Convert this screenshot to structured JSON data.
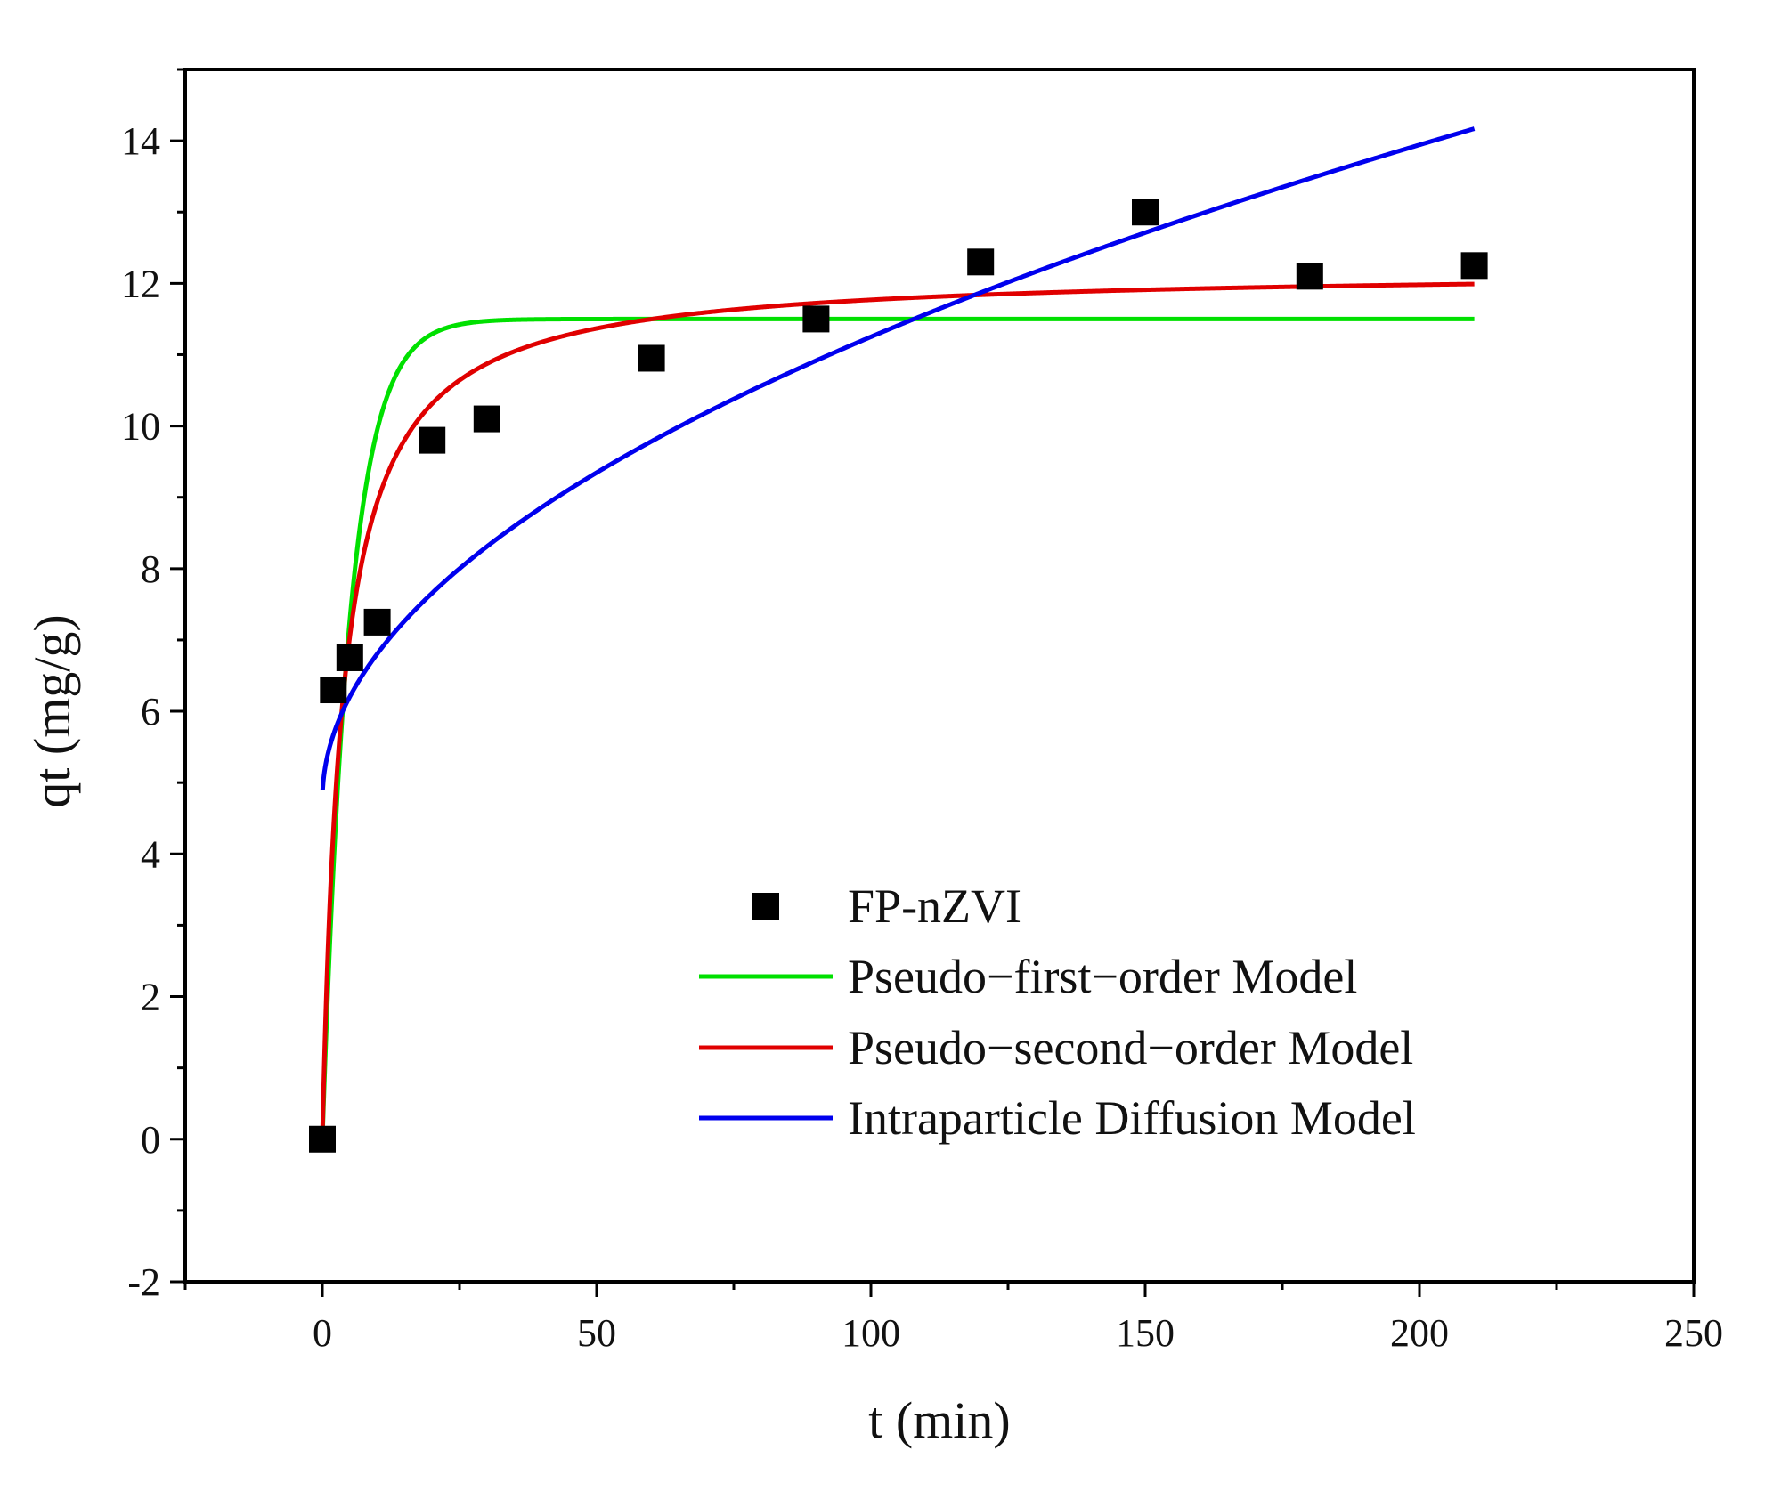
{
  "chart_data": {
    "type": "scatter",
    "title": "",
    "xlabel": "t (min)",
    "ylabel": "qt (mg/g)",
    "xlim": [
      -25,
      250
    ],
    "ylim": [
      -2,
      15
    ],
    "xticks": [
      0,
      50,
      100,
      150,
      200,
      250
    ],
    "yticks": [
      -2,
      0,
      2,
      4,
      6,
      8,
      10,
      12,
      14
    ],
    "x_minor_step": 25,
    "y_minor_step": 1,
    "grid": false,
    "legend_position": "bottom-right",
    "points": {
      "name": "FP-nZVI",
      "color": "#000000",
      "marker": "square",
      "x": [
        0,
        2,
        5,
        10,
        20,
        30,
        60,
        90,
        120,
        150,
        180,
        210
      ],
      "y": [
        0,
        6.3,
        6.75,
        7.25,
        9.8,
        10.1,
        10.95,
        11.5,
        12.3,
        13.0,
        12.1,
        12.25
      ]
    },
    "series": [
      {
        "name": "Pseudo−first−order Model",
        "color": "#00e000",
        "model": "pfo",
        "params": {
          "qe": 11.5,
          "k1": 0.2
        },
        "x_range": [
          0,
          210
        ]
      },
      {
        "name": "Pseudo−second−order Model",
        "color": "#e00000",
        "model": "pso",
        "params": {
          "qe": 12.2,
          "k2": 0.0224
        },
        "x_range": [
          0,
          210
        ]
      },
      {
        "name": "Intraparticle Diffusion Model",
        "color": "#0000ee",
        "model": "ipd",
        "params": {
          "kid": 0.65,
          "c": 4.75
        },
        "x_range": [
          0.05,
          210
        ]
      }
    ]
  }
}
